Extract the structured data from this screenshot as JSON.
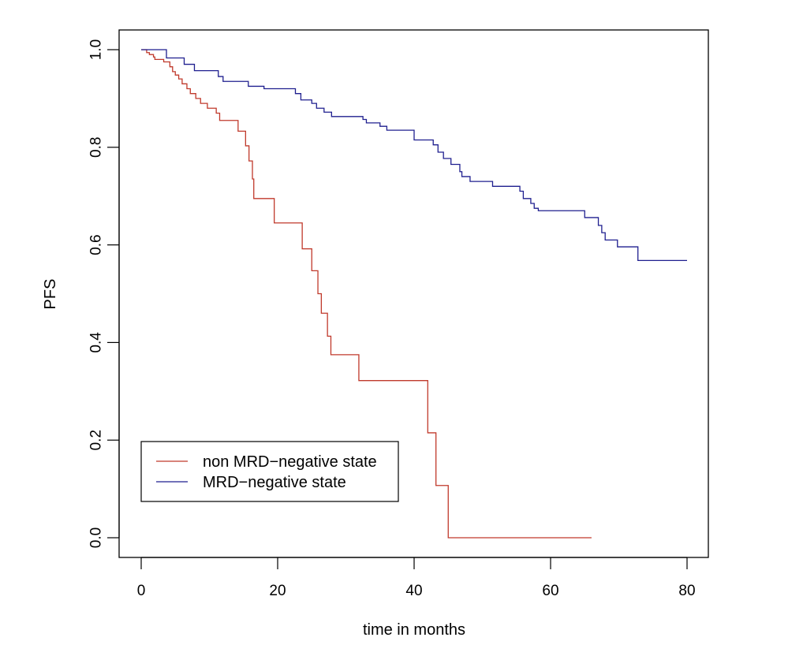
{
  "chart_data": {
    "type": "line",
    "subtype": "kaplan-meier step",
    "title": "",
    "xlabel": "time in months",
    "ylabel": "PFS",
    "xlim": [
      0,
      80
    ],
    "ylim": [
      0,
      1
    ],
    "x_ticks": [
      0,
      20,
      40,
      60,
      80
    ],
    "x_tick_labels": [
      "0",
      "20",
      "40",
      "60",
      "80"
    ],
    "y_ticks": [
      0,
      0.2,
      0.4,
      0.6,
      0.8,
      1
    ],
    "y_tick_labels": [
      "0.0",
      "0.2",
      "0.4",
      "0.6",
      "0.8",
      "1.0"
    ],
    "grid": false,
    "legend_position": "bottom-left",
    "series": [
      {
        "name": "non MRD−negative state",
        "color": "#c0392b",
        "steps": [
          [
            0,
            1.0
          ],
          [
            0.8,
            0.994
          ],
          [
            1.2,
            0.99
          ],
          [
            1.8,
            0.985
          ],
          [
            2.0,
            0.98
          ],
          [
            3.3,
            0.975
          ],
          [
            4.2,
            0.965
          ],
          [
            4.6,
            0.955
          ],
          [
            5.0,
            0.948
          ],
          [
            5.5,
            0.94
          ],
          [
            6.0,
            0.93
          ],
          [
            6.7,
            0.92
          ],
          [
            7.2,
            0.91
          ],
          [
            8.0,
            0.9
          ],
          [
            8.7,
            0.89
          ],
          [
            9.7,
            0.88
          ],
          [
            11.0,
            0.87
          ],
          [
            11.5,
            0.855
          ],
          [
            14.2,
            0.833
          ],
          [
            15.3,
            0.803
          ],
          [
            15.8,
            0.772
          ],
          [
            16.3,
            0.735
          ],
          [
            16.5,
            0.695
          ],
          [
            19.5,
            0.645
          ],
          [
            23.6,
            0.592
          ],
          [
            25.0,
            0.547
          ],
          [
            25.9,
            0.5
          ],
          [
            26.4,
            0.46
          ],
          [
            27.3,
            0.413
          ],
          [
            27.8,
            0.375
          ],
          [
            31.9,
            0.322
          ],
          [
            42.0,
            0.215
          ],
          [
            43.2,
            0.107
          ],
          [
            45.0,
            0.0
          ],
          [
            66.0,
            0.0
          ]
        ]
      },
      {
        "name": "MRD−negative state",
        "color": "#1f1f8f",
        "steps": [
          [
            0,
            1.0
          ],
          [
            3.7,
            0.983
          ],
          [
            6.3,
            0.97
          ],
          [
            7.8,
            0.957
          ],
          [
            11.3,
            0.945
          ],
          [
            12.0,
            0.935
          ],
          [
            15.7,
            0.925
          ],
          [
            18.0,
            0.92
          ],
          [
            22.6,
            0.91
          ],
          [
            23.4,
            0.897
          ],
          [
            25.0,
            0.89
          ],
          [
            25.7,
            0.88
          ],
          [
            26.8,
            0.872
          ],
          [
            27.9,
            0.863
          ],
          [
            32.5,
            0.857
          ],
          [
            33.0,
            0.85
          ],
          [
            35.0,
            0.843
          ],
          [
            36.0,
            0.835
          ],
          [
            40.0,
            0.815
          ],
          [
            42.8,
            0.805
          ],
          [
            43.5,
            0.79
          ],
          [
            44.3,
            0.777
          ],
          [
            45.4,
            0.765
          ],
          [
            46.7,
            0.75
          ],
          [
            47.0,
            0.74
          ],
          [
            48.2,
            0.73
          ],
          [
            51.5,
            0.72
          ],
          [
            55.5,
            0.71
          ],
          [
            56.0,
            0.695
          ],
          [
            57.1,
            0.685
          ],
          [
            57.6,
            0.675
          ],
          [
            58.2,
            0.67
          ],
          [
            65.0,
            0.656
          ],
          [
            67.0,
            0.64
          ],
          [
            67.5,
            0.625
          ],
          [
            68.0,
            0.61
          ],
          [
            69.8,
            0.596
          ],
          [
            72.8,
            0.568
          ],
          [
            80.0,
            0.568
          ]
        ]
      }
    ]
  }
}
